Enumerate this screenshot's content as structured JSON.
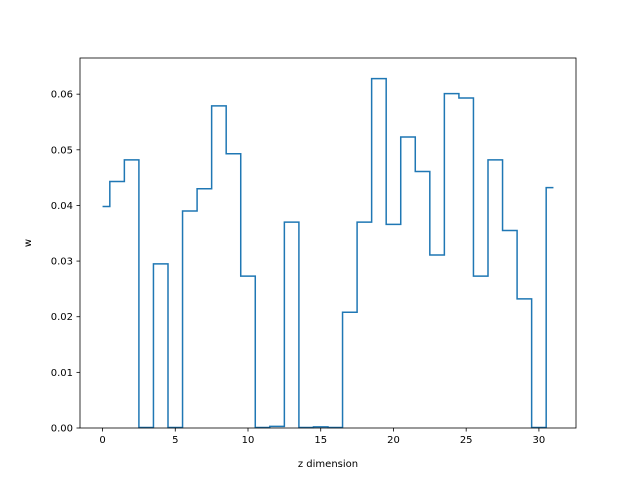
{
  "chart_data": {
    "type": "line",
    "drawstyle": "steps-mid",
    "title": "",
    "xlabel": "z dimension",
    "ylabel": "w",
    "xlim": [
      -1.55,
      32.55
    ],
    "ylim": [
      0.0,
      0.0665
    ],
    "xticks": [
      0,
      5,
      10,
      15,
      20,
      25,
      30
    ],
    "yticks": [
      0.0,
      0.01,
      0.02,
      0.03,
      0.04,
      0.05,
      0.06
    ],
    "ytick_labels": [
      "0.00",
      "0.01",
      "0.02",
      "0.03",
      "0.04",
      "0.05",
      "0.06"
    ],
    "grid": false,
    "legend": "none",
    "series_color": "#1f77b4",
    "series": [
      {
        "x": [
          0,
          1,
          2,
          3,
          4,
          5,
          6,
          7,
          8,
          9,
          10,
          11,
          12,
          13,
          14,
          15,
          16,
          17,
          18,
          19,
          20,
          21,
          22,
          23,
          24,
          25,
          26,
          27,
          28,
          29,
          30,
          31
        ],
        "values": [
          0.0398,
          0.0443,
          0.0482,
          0.0001,
          0.0295,
          0.0001,
          0.039,
          0.043,
          0.0579,
          0.0493,
          0.0273,
          0.0001,
          0.0003,
          0.037,
          0.0001,
          0.0002,
          0.0001,
          0.0208,
          0.037,
          0.0628,
          0.0366,
          0.0523,
          0.0461,
          0.0311,
          0.0601,
          0.0593,
          0.0273,
          0.0482,
          0.0355,
          0.0232,
          0.0001,
          0.0432
        ]
      }
    ]
  }
}
